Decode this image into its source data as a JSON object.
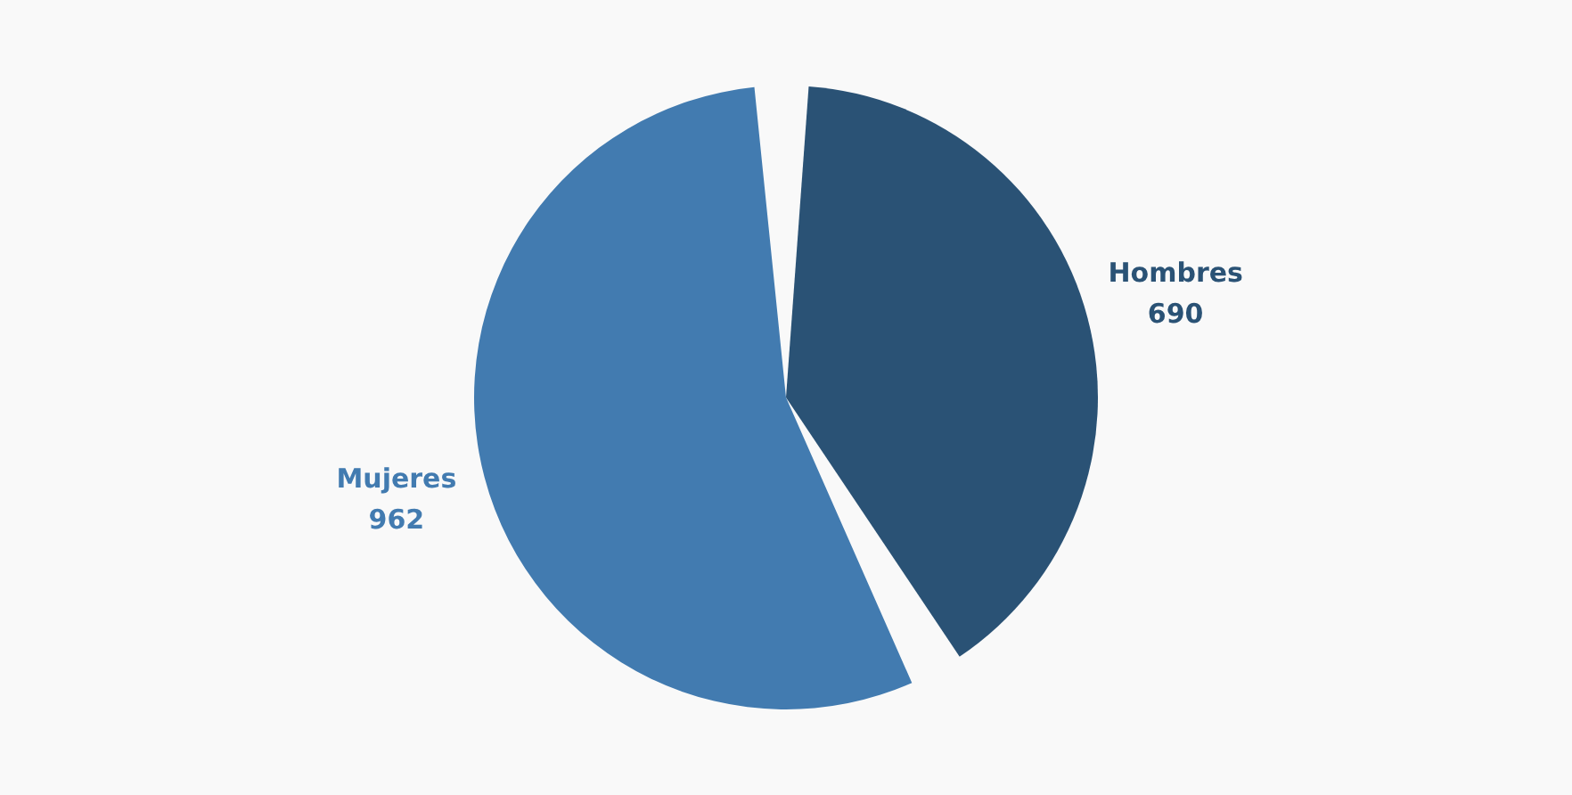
{
  "chart_data": {
    "type": "pie",
    "categories": [
      "Hombres",
      "Mujeres"
    ],
    "values": [
      690,
      962
    ],
    "colors": [
      "#2a5275",
      "#427bb0"
    ],
    "data_labels": true,
    "legend": false
  }
}
